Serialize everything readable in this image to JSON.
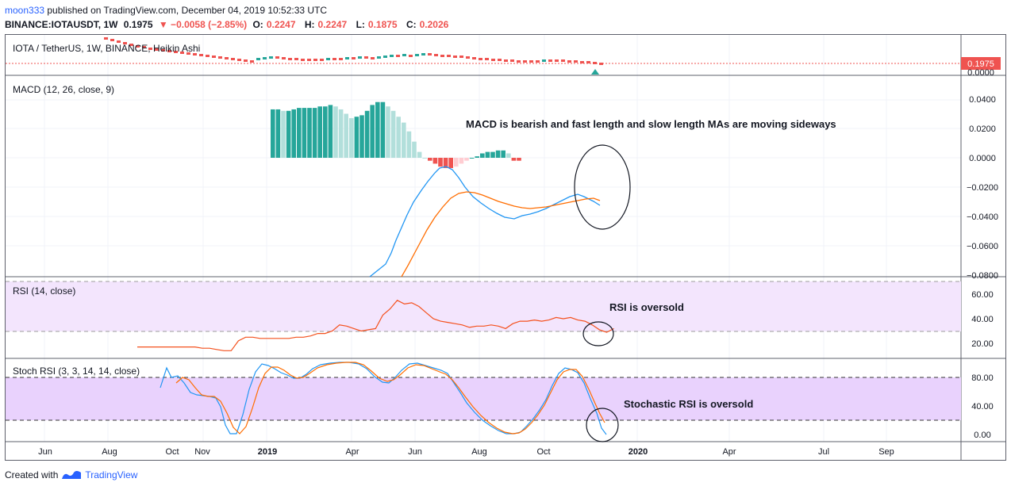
{
  "header": {
    "username": "moon333",
    "published_text": " published on TradingView.com, December 04, 2019 10:52:33 UTC",
    "symbol": "BINANCE:IOTAUSDT, 1W",
    "price": "0.1975",
    "change": "▼ −0.0058 (−2.85%)",
    "o_label": "O:",
    "o_value": "0.2247",
    "h_label": "H:",
    "h_value": "0.2247",
    "l_label": "L:",
    "l_value": "0.1875",
    "c_label": "C:",
    "c_value": "0.2026"
  },
  "price_pane": {
    "title": "IOTA / TetherUS, 1W, BINANCE, Heikin Ashi",
    "last_price": "0.1975",
    "axis_label": "0.0000"
  },
  "macd_pane": {
    "title": "MACD (12, 26, close, 9)",
    "annotation": "MACD is bearish and  fast length and slow length MAs are moving sideways",
    "ticks": [
      "0.0400",
      "0.0200",
      "0.0000",
      "−0.0200",
      "−0.0400",
      "−0.0600",
      "−0.0800"
    ]
  },
  "rsi_pane": {
    "title": "RSI (14, close)",
    "annotation": "RSI is oversold",
    "ticks": [
      "60.00",
      "40.00",
      "20.00"
    ]
  },
  "stoch_pane": {
    "title": "Stoch RSI (3, 3, 14, 14, close)",
    "annotation": "Stochastic RSI is oversold",
    "ticks": [
      "80.00",
      "40.00",
      "0.00"
    ]
  },
  "time_axis": {
    "labels": [
      "Jun",
      "Aug",
      "Oct",
      "Nov",
      "2019",
      "Apr",
      "Jun",
      "Aug",
      "Oct",
      "2020",
      "Apr",
      "Jul",
      "Sep"
    ]
  },
  "footer": {
    "created_with": "Created with",
    "brand": "TradingView"
  },
  "colors": {
    "up": "#26a69a",
    "down": "#ef5350",
    "macd_line": "#2196f3",
    "signal_line": "#ff6d00",
    "hist_up_light": "#b2dfdb",
    "hist_down_light": "#ffcdd2",
    "rsi_line": "#f4511e",
    "rsi_band": "#f3e5fd",
    "stoch_band": "#e9d2fd"
  },
  "chart_data": {
    "macd_histogram": [
      0.033,
      0.033,
      0.032,
      0.032,
      0.033,
      0.034,
      0.034,
      0.034,
      0.034,
      0.035,
      0.035,
      0.036,
      0.035,
      0.033,
      0.03,
      0.027,
      0.028,
      0.029,
      0.032,
      0.036,
      0.038,
      0.038,
      0.035,
      0.032,
      0.028,
      0.024,
      0.018,
      0.011,
      0.004,
      0,
      -0.002,
      -0.004,
      -0.006,
      -0.007,
      -0.007,
      -0.006,
      -0.004,
      -0.002,
      0,
      0.001,
      0.003,
      0.004,
      0.004,
      0.005,
      0.005,
      0.003,
      -0.002,
      -0.002
    ],
    "rsi": [
      17,
      17,
      17,
      17,
      17,
      17,
      17,
      17,
      17,
      16,
      16,
      15,
      14,
      14,
      22,
      25,
      25,
      24,
      24,
      24,
      24,
      24,
      25,
      25,
      26,
      28,
      28,
      30,
      35,
      34,
      32,
      30,
      31,
      32,
      43,
      48,
      55,
      52,
      53,
      50,
      45,
      40,
      38,
      37,
      36,
      35,
      33,
      34,
      34,
      35,
      34,
      32,
      36,
      38,
      38,
      39,
      38,
      39,
      41,
      40,
      41,
      39,
      38,
      35,
      31,
      29,
      32
    ]
  }
}
